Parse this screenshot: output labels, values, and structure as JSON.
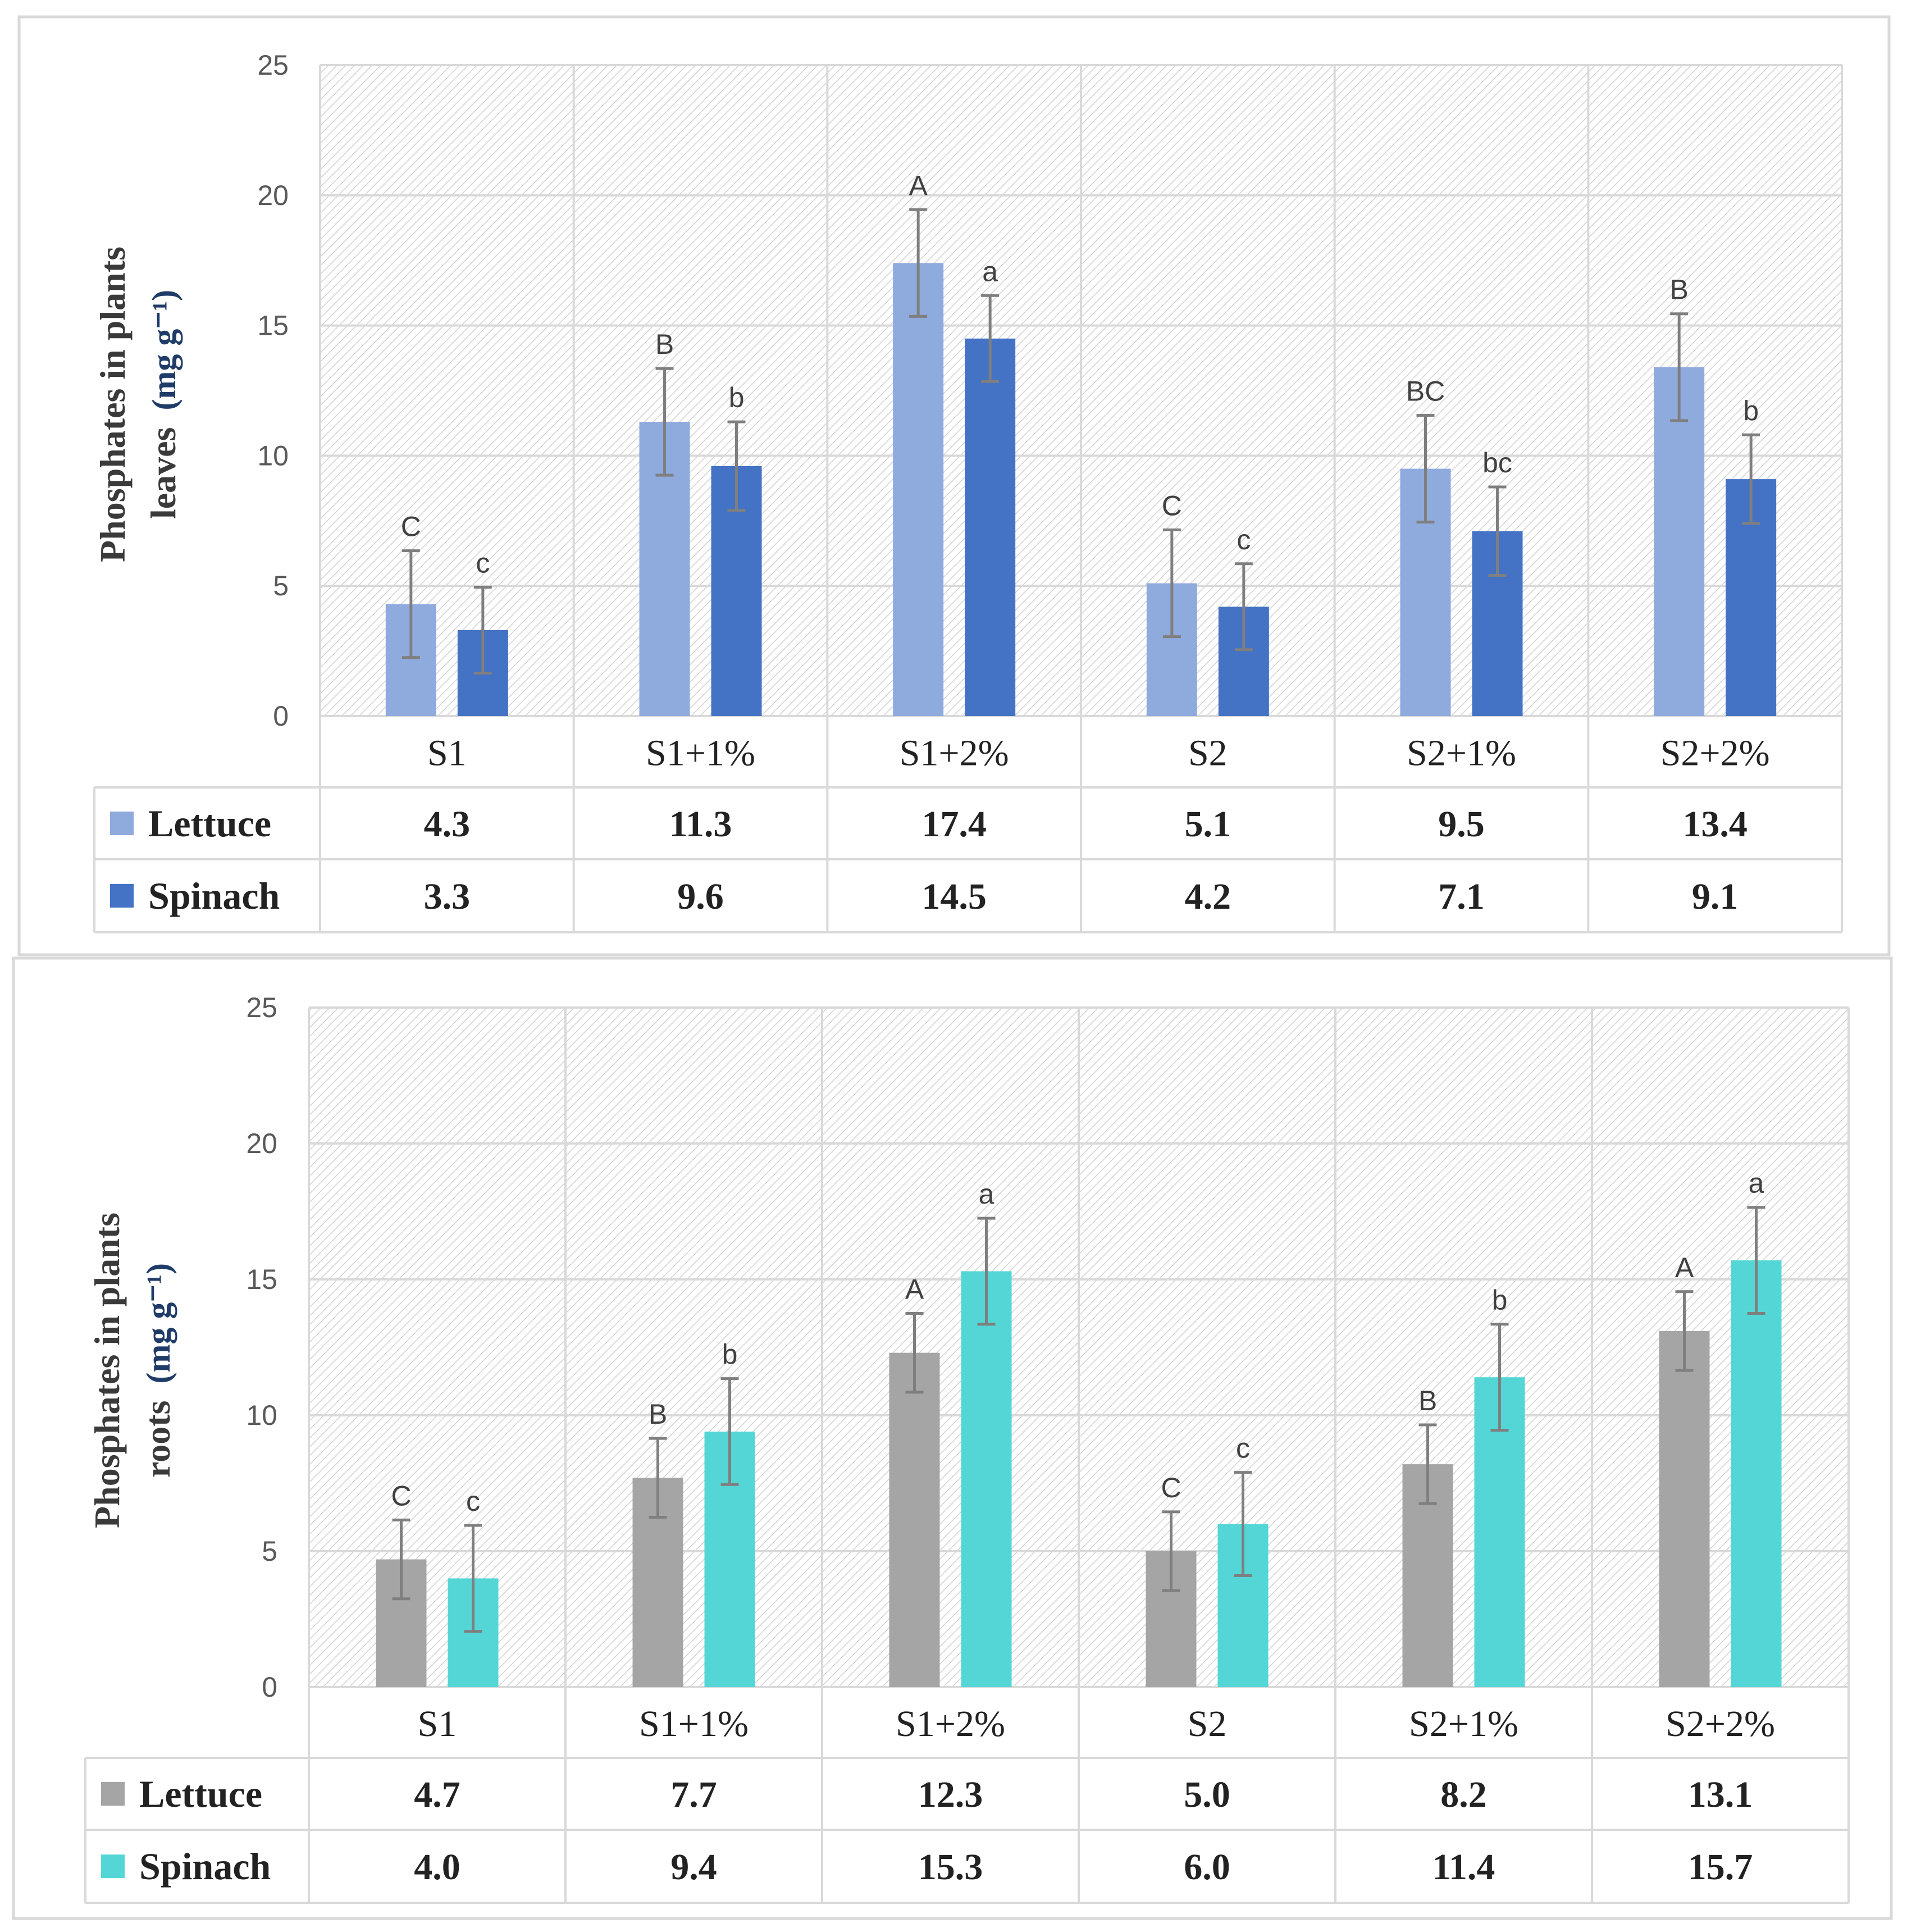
{
  "chart_data": [
    {
      "type": "bar",
      "panel": "leaves",
      "ylabel_line1": "Phosphates in plants",
      "ylabel_line2": "leaves",
      "ylabel_unit": "(mg g⁻¹)",
      "ylim": [
        0,
        25
      ],
      "yticks": [
        "0",
        "5",
        "10",
        "15",
        "20",
        "25"
      ],
      "categories": [
        "S1",
        "S1+1%",
        "S1+2%",
        "S2",
        "S2+1%",
        "S2+2%"
      ],
      "series": [
        {
          "name": "Lettuce",
          "color": "#8faadc",
          "values": [
            4.3,
            11.3,
            17.4,
            5.1,
            9.5,
            13.4
          ],
          "value_labels": [
            "4.3",
            "11.3",
            "17.4",
            "5.1",
            "9.5",
            "13.4"
          ],
          "errors": [
            2.05,
            2.05,
            2.05,
            2.05,
            2.05,
            2.05
          ],
          "letters": [
            "C",
            "B",
            "A",
            "C",
            "BC",
            "B"
          ]
        },
        {
          "name": "Spinach",
          "color": "#4472c4",
          "values": [
            3.3,
            9.6,
            14.5,
            4.2,
            7.1,
            9.1
          ],
          "value_labels": [
            "3.3",
            "9.6",
            "14.5",
            "4.2",
            "7.1",
            "9.1"
          ],
          "errors": [
            1.65,
            1.7,
            1.65,
            1.65,
            1.7,
            1.7
          ],
          "letters": [
            "c",
            "b",
            "a",
            "c",
            "bc",
            "b"
          ]
        }
      ],
      "grid": true
    },
    {
      "type": "bar",
      "panel": "roots",
      "ylabel_line1": "Phosphates in plants",
      "ylabel_line2": "roots",
      "ylabel_unit": "(mg g⁻¹)",
      "ylim": [
        0,
        25
      ],
      "yticks": [
        "0",
        "5",
        "10",
        "15",
        "20",
        "25"
      ],
      "categories": [
        "S1",
        "S1+1%",
        "S1+2%",
        "S2",
        "S2+1%",
        "S2+2%"
      ],
      "series": [
        {
          "name": "Lettuce",
          "color": "#a5a5a5",
          "values": [
            4.7,
            7.7,
            12.3,
            5.0,
            8.2,
            13.1
          ],
          "value_labels": [
            "4.7",
            "7.7",
            "12.3",
            "5.0",
            "8.2",
            "13.1"
          ],
          "errors": [
            1.45,
            1.45,
            1.45,
            1.45,
            1.45,
            1.45
          ],
          "letters": [
            "C",
            "B",
            "A",
            "C",
            "B",
            "A"
          ]
        },
        {
          "name": "Spinach",
          "color": "#54d6d6",
          "values": [
            4.0,
            9.4,
            15.3,
            6.0,
            11.4,
            15.7
          ],
          "value_labels": [
            "4.0",
            "9.4",
            "15.3",
            "6.0",
            "11.4",
            "15.7"
          ],
          "errors": [
            1.95,
            1.95,
            1.95,
            1.9,
            1.95,
            1.95
          ],
          "letters": [
            "c",
            "b",
            "a",
            "c",
            "b",
            "a"
          ]
        }
      ],
      "grid": true
    }
  ]
}
